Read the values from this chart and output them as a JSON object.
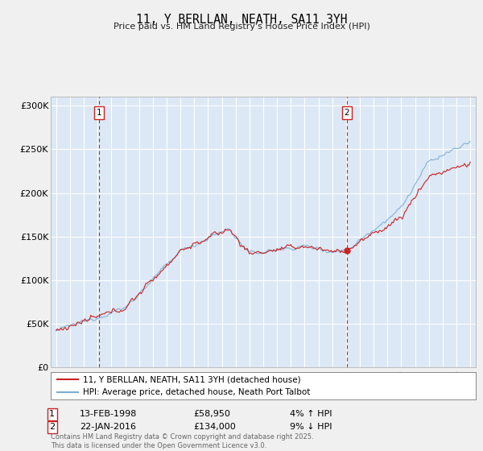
{
  "title": "11, Y BERLLAN, NEATH, SA11 3YH",
  "subtitle": "Price paid vs. HM Land Registry's House Price Index (HPI)",
  "legend_line1": "11, Y BERLLAN, NEATH, SA11 3YH (detached house)",
  "legend_line2": "HPI: Average price, detached house, Neath Port Talbot",
  "annotation1_label": "1",
  "annotation1_date": "13-FEB-1998",
  "annotation1_price": "£58,950",
  "annotation1_hpi": "4% ↑ HPI",
  "annotation2_label": "2",
  "annotation2_date": "22-JAN-2016",
  "annotation2_price": "£134,000",
  "annotation2_hpi": "9% ↓ HPI",
  "footer": "Contains HM Land Registry data © Crown copyright and database right 2025.\nThis data is licensed under the Open Government Licence v3.0.",
  "sale1_year": 1998.12,
  "sale1_value": 58950,
  "sale2_year": 2016.07,
  "sale2_value": 134000,
  "hpi_color": "#7aadd4",
  "price_color": "#cc2222",
  "bg_color": "#f0f0f0",
  "plot_bg": "#dce8f5",
  "ylim_min": 0,
  "ylim_max": 310000,
  "xlim_min": 1994.6,
  "xlim_max": 2025.4
}
